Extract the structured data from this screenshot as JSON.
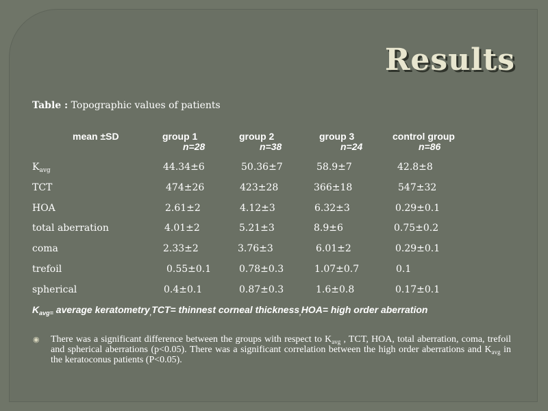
{
  "title": "Results",
  "caption": {
    "bold": "Table :",
    "text": " Topographic values of patients"
  },
  "table": {
    "headers": [
      {
        "label": "mean ±SD",
        "n": ""
      },
      {
        "label": "group 1",
        "n": "n=28"
      },
      {
        "label": "group 2",
        "n": "n=38"
      },
      {
        "label": "group 3",
        "n": "n=24"
      },
      {
        "label": "control group",
        "n": "n=86"
      }
    ],
    "rows": [
      {
        "label_main": "K",
        "label_sub": "avg",
        "values": [
          "44.34±6",
          "50.36±7",
          "58.9±7",
          "42.8±8"
        ]
      },
      {
        "label_main": "TCT",
        "label_sub": "",
        "values": [
          "474±26",
          "423±28",
          "366±18",
          "547±32"
        ]
      },
      {
        "label_main": "HOA",
        "label_sub": "",
        "values": [
          "2.61±2",
          "4.12±3",
          "6.32±3",
          "0.29±0.1"
        ]
      },
      {
        "label_main": "total aberration",
        "label_sub": "",
        "values": [
          "4.01±2",
          "5.21±3",
          "8.9±6",
          "0.75±0.2"
        ]
      },
      {
        "label_main": "coma",
        "label_sub": "",
        "values": [
          "2.33±2",
          "3.76±3",
          "6.01±2",
          "0.29±0.1"
        ]
      },
      {
        "label_main": "trefoil",
        "label_sub": "",
        "values": [
          "0.55±0.1",
          "0.78±0.3",
          "1.07±0.7",
          "0.1"
        ]
      },
      {
        "label_main": "spherical",
        "label_sub": "",
        "values": [
          "0.4±0.1",
          "0.87±0.3",
          "1.6±0.8",
          "0.17±0.1"
        ]
      }
    ]
  },
  "abbrev_note": {
    "k": "K",
    "k_sub": "avg=",
    "part1": " average keratometry",
    "sep1": ",",
    "part2": "TCT= thinnest corneal thickness",
    "sep2": ",",
    "part3": "HOA= high order aberration"
  },
  "bullet": {
    "icon": "bullet-ring-icon",
    "t1": "There was a significant  difference  between  the groups with respect to K",
    "s1": "avg",
    "t2": " , TCT, HOA, total aberration, coma, trefoil and spherical aberrations (p<0.05). There was a significant  correlation between the high  order aberrations and K",
    "s2": "avg",
    "t3": " in the keratoconus patients (P<0.05)."
  }
}
